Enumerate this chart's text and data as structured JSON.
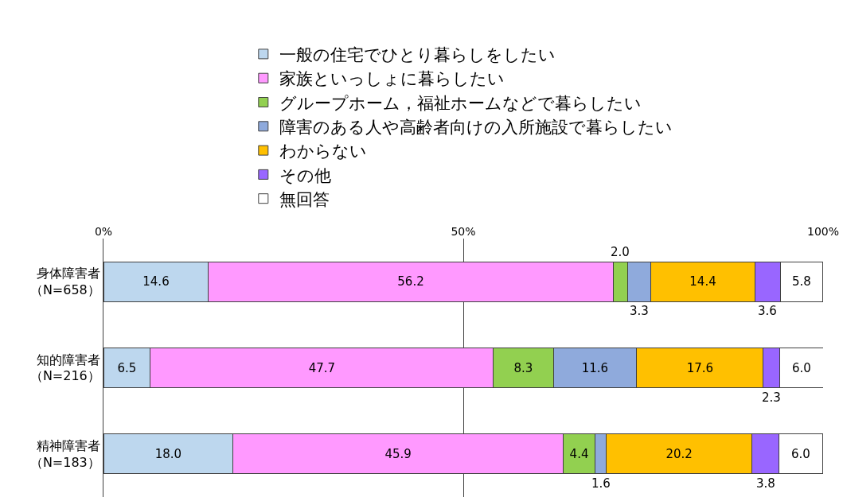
{
  "chart_data": {
    "type": "bar",
    "orientation": "horizontal",
    "stacked": true,
    "grid": "x",
    "legend": "top",
    "categories": [
      "身体障害者（N=658）",
      "知的障害者（N=216）",
      "精神障害者（N=183）"
    ],
    "xlim": [
      0,
      100
    ],
    "xticks": [
      {
        "value": 0,
        "label": "0%"
      },
      {
        "value": 50,
        "label": "50%"
      },
      {
        "value": 100,
        "label": "100%"
      }
    ],
    "series": [
      {
        "name": "一般の住宅でひとり暮らしをしたい",
        "color": "#bdd7ee",
        "values": [
          14.6,
          6.5,
          18.0
        ],
        "value_labels": [
          "14.6",
          "6.5",
          "18.0"
        ]
      },
      {
        "name": "家族といっしょに暮らしたい",
        "color": "#ff99ff",
        "values": [
          56.2,
          47.7,
          45.9
        ],
        "value_labels": [
          "56.2",
          "47.7",
          "45.9"
        ]
      },
      {
        "name": "グループホーム，福祉ホームなどで暮らしたい",
        "color": "#92d050",
        "values": [
          2.0,
          8.3,
          4.4
        ],
        "value_labels": [
          "2.0",
          "8.3",
          "4.4"
        ]
      },
      {
        "name": "障害のある人や高齢者向けの入所施設で暮らしたい",
        "color": "#8faadc",
        "values": [
          3.3,
          11.6,
          1.6
        ],
        "value_labels": [
          "3.3",
          "11.6",
          "1.6"
        ]
      },
      {
        "name": "わからない",
        "color": "#ffc000",
        "values": [
          14.4,
          17.6,
          20.2
        ],
        "value_labels": [
          "14.4",
          "17.6",
          "20.2"
        ]
      },
      {
        "name": "その他",
        "color": "#9966ff",
        "values": [
          3.6,
          2.3,
          3.8
        ],
        "value_labels": [
          "3.6",
          "2.3",
          "3.8"
        ]
      },
      {
        "name": "無回答",
        "color": "#ffffff",
        "values": [
          5.8,
          6.0,
          6.0
        ],
        "value_labels": [
          "5.8",
          "6.0",
          "6.0"
        ]
      }
    ]
  }
}
